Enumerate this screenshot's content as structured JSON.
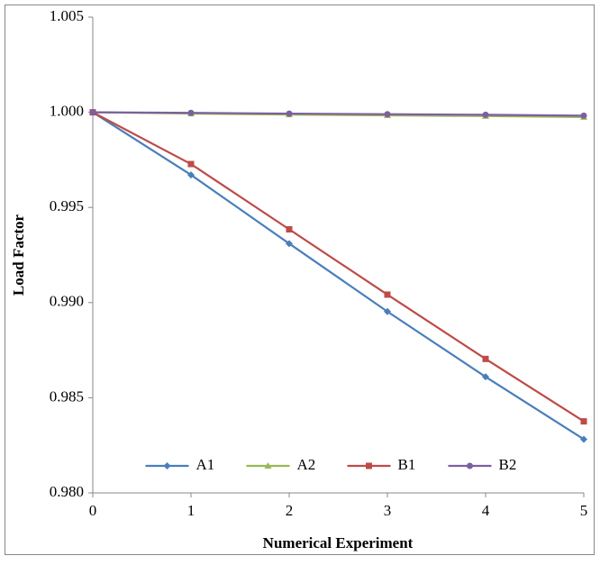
{
  "chart_data": {
    "type": "line",
    "x_label": "Numerical Experiment",
    "y_label": "Load Factor",
    "x": [
      0,
      1,
      2,
      3,
      4,
      5
    ],
    "xlim": [
      0,
      5
    ],
    "xticks": [
      0,
      1,
      2,
      3,
      4,
      5
    ],
    "ylim": [
      0.98,
      1.005
    ],
    "yticks": [
      {
        "value": 0.98,
        "label": "0.980"
      },
      {
        "value": 0.985,
        "label": "0.985"
      },
      {
        "value": 0.99,
        "label": "0.990"
      },
      {
        "value": 0.995,
        "label": "0.995"
      },
      {
        "value": 1.0,
        "label": "1.000"
      },
      {
        "value": 1.005,
        "label": "1.005"
      }
    ],
    "grid": false,
    "legend": "lower center",
    "series": [
      {
        "name": "A1",
        "color": "#4a7ebb",
        "marker": "diamond",
        "values": [
          1.0,
          0.99671,
          0.9931,
          0.98953,
          0.9861,
          0.98282
        ]
      },
      {
        "name": "A2",
        "color": "#98b954",
        "marker": "triangle",
        "values": [
          1.0,
          0.99993,
          0.99988,
          0.99984,
          0.9998,
          0.99975
        ]
      },
      {
        "name": "B1",
        "color": "#be4b48",
        "marker": "square",
        "values": [
          1.0,
          0.99728,
          0.99385,
          0.99042,
          0.98704,
          0.98376
        ]
      },
      {
        "name": "B2",
        "color": "#7d5fa0",
        "marker": "circle",
        "values": [
          1.0,
          0.99997,
          0.99993,
          0.9999,
          0.99987,
          0.99982
        ]
      }
    ]
  }
}
